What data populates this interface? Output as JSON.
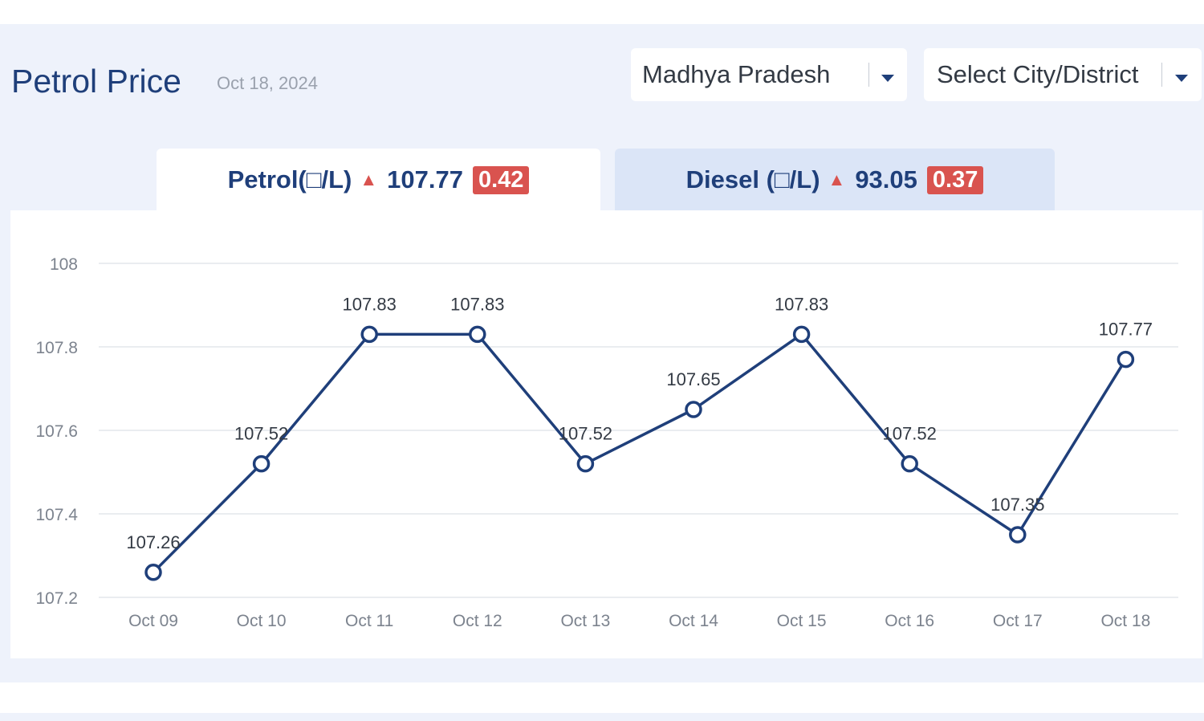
{
  "header": {
    "title": "Petrol Price",
    "date": "Oct 18, 2024"
  },
  "filters": {
    "state": "Madhya Pradesh",
    "city": "Select City/District"
  },
  "tabs": [
    {
      "label": "Petrol(□/L)",
      "price": "107.77",
      "change": "0.42",
      "trend": "up",
      "active": true
    },
    {
      "label": "Diesel (□/L)",
      "price": "93.05",
      "change": "0.37",
      "trend": "up",
      "active": false
    }
  ],
  "colors": {
    "accent": "#1f3f7a",
    "up_badge": "#d9534f",
    "panel_bg": "#eef2fb",
    "inactive_tab": "#dbe5f7"
  },
  "icons": {
    "dropdown": "chevron-down-icon",
    "trend": "triangle-up-icon"
  },
  "chart_data": {
    "type": "line",
    "categories": [
      "Oct 09",
      "Oct 10",
      "Oct 11",
      "Oct 12",
      "Oct 13",
      "Oct 14",
      "Oct 15",
      "Oct 16",
      "Oct 17",
      "Oct 18"
    ],
    "series": [
      {
        "values": [
          107.26,
          107.52,
          107.83,
          107.83,
          107.52,
          107.65,
          107.83,
          107.52,
          107.35,
          107.77
        ]
      }
    ],
    "data_labels": [
      "107.26",
      "107.52",
      "107.83",
      "107.83",
      "107.52",
      "107.65",
      "107.83",
      "107.52",
      "107.35",
      "107.77"
    ],
    "yticks": [
      "107.2",
      "107.4",
      "107.6",
      "107.8",
      "108"
    ],
    "ylim": [
      107.2,
      108
    ],
    "grid": true,
    "legend": "none"
  }
}
